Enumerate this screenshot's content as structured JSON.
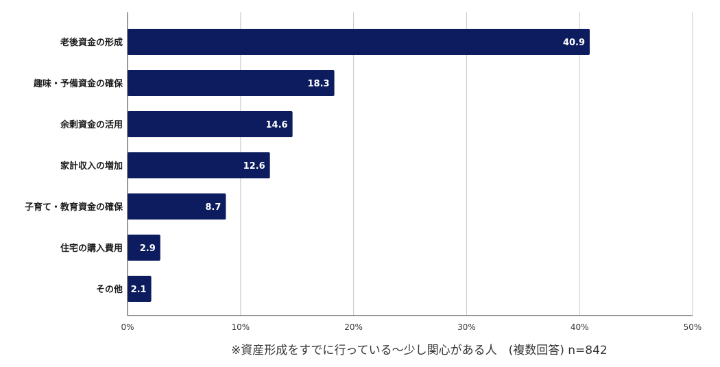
{
  "chart_data": {
    "type": "bar",
    "orientation": "horizontal",
    "categories": [
      "老後資金の形成",
      "趣味・予備資金の確保",
      "余剰資金の活用",
      "家計収入の増加",
      "子育て・教育資金の確保",
      "住宅の購入費用",
      "その他"
    ],
    "values": [
      40.9,
      18.3,
      14.6,
      12.6,
      8.7,
      2.9,
      2.1
    ],
    "value_labels": [
      "40.9",
      "18.3",
      "14.6",
      "12.6",
      "8.7",
      "2.9",
      "2.1"
    ],
    "xlim": [
      0,
      50
    ],
    "xticks": [
      0,
      10,
      20,
      30,
      40,
      50
    ],
    "xtick_labels": [
      "0%",
      "10%",
      "20%",
      "30%",
      "40%",
      "50%"
    ],
    "grid": "vertical",
    "bar_color": "#0c1c5e",
    "legend": "none",
    "title": "",
    "xlabel": "",
    "ylabel": ""
  },
  "footnote": "※資産形成をすでに行っている～少し関心がある人　(複数回答)   n=842"
}
